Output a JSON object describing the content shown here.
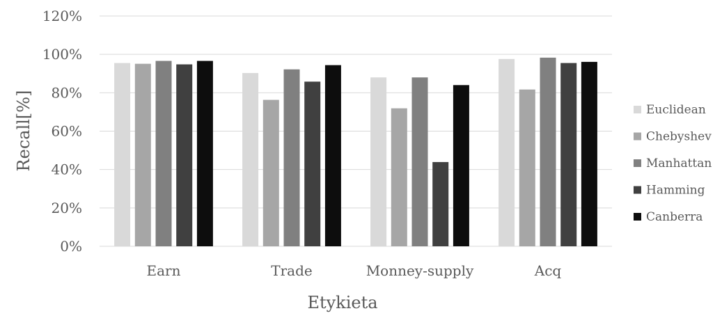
{
  "chart_data": {
    "type": "bar",
    "title": "",
    "xlabel": "Etykieta",
    "ylabel": "Recall[%]",
    "categories": [
      "Earn",
      "Trade",
      "Monney-supply",
      "Acq"
    ],
    "ylim": [
      0,
      120
    ],
    "yticks": [
      0,
      20,
      40,
      60,
      80,
      100,
      120
    ],
    "ytick_labels": [
      "0%",
      "20%",
      "40%",
      "60%",
      "80%",
      "100%",
      "120%"
    ],
    "grid": true,
    "legend_position": "right",
    "series": [
      {
        "name": "Euclidean",
        "color": "#d9d9d9",
        "values": [
          95.5,
          90.3,
          88.0,
          97.6
        ]
      },
      {
        "name": "Chebyshev",
        "color": "#a6a6a6",
        "values": [
          95.1,
          76.3,
          71.9,
          81.7
        ]
      },
      {
        "name": "Manhattan",
        "color": "#808080",
        "values": [
          96.6,
          92.2,
          88.0,
          98.3
        ]
      },
      {
        "name": "Hamming",
        "color": "#404040",
        "values": [
          94.8,
          85.8,
          43.9,
          95.5
        ]
      },
      {
        "name": "Canberra",
        "color": "#0d0d0d",
        "values": [
          96.6,
          94.4,
          84.0,
          96.1
        ]
      }
    ]
  }
}
